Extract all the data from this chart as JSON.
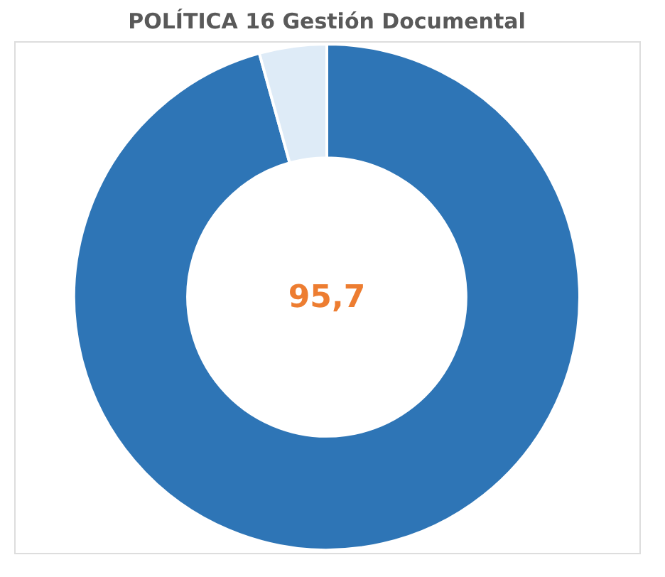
{
  "chart_data": {
    "type": "donut",
    "title": "POLÍTICA 16 Gestión Documental",
    "categories": [
      null,
      null
    ],
    "values": [
      95.7,
      4.3
    ],
    "colors": [
      "#2e75b6",
      "#deebf7"
    ],
    "annotations": [
      "95,7"
    ],
    "legend": false
  }
}
